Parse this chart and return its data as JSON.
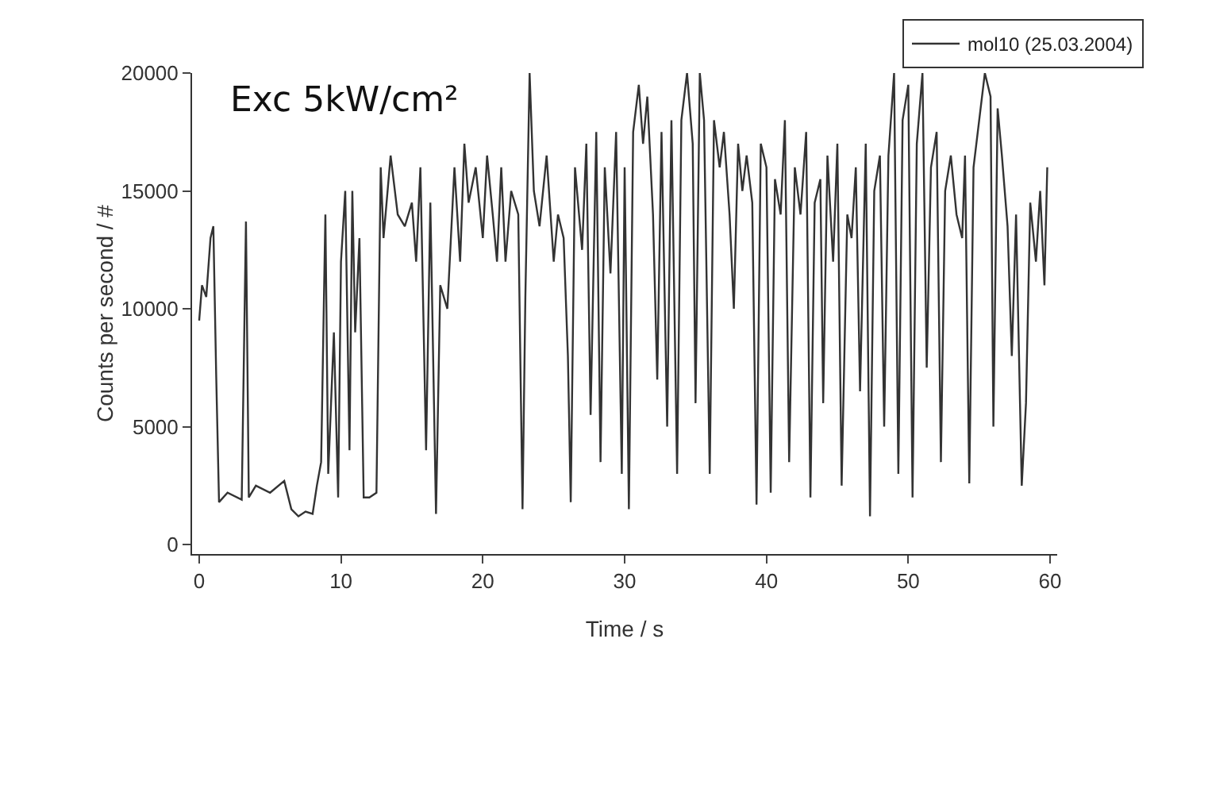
{
  "chart_data": {
    "type": "line",
    "xlabel": "Time / s",
    "ylabel": "Counts per second / #",
    "annotations": [
      "Exc 5kW/cm²"
    ],
    "xlim": [
      -0.5,
      60.5
    ],
    "xticks": [
      0,
      10,
      20,
      30,
      40,
      50,
      60
    ],
    "ylim": [
      -400,
      20000
    ],
    "yticks": [
      0,
      5000,
      10000,
      15000,
      20000
    ],
    "grid": false,
    "legend": "top right",
    "marker": "none",
    "line_style": "solid",
    "x": [
      0,
      0.2,
      0.5,
      0.8,
      1.0,
      1.2,
      1.4,
      2,
      3,
      3.3,
      3.5,
      4,
      5,
      6,
      6.5,
      7,
      7.5,
      8,
      8.3,
      8.6,
      8.9,
      9.1,
      9.5,
      9.8,
      10,
      10.3,
      10.6,
      10.8,
      11,
      11.3,
      11.6,
      12,
      12.5,
      12.8,
      13,
      13.5,
      14,
      14.5,
      15,
      15.3,
      15.6,
      16,
      16.3,
      16.7,
      17,
      17.5,
      18,
      18.4,
      18.7,
      19,
      19.5,
      20,
      20.3,
      20.7,
      21,
      21.3,
      21.6,
      22,
      22.5,
      22.8,
      23,
      23.3,
      23.6,
      24,
      24.5,
      25,
      25.3,
      25.7,
      26,
      26.2,
      26.5,
      27,
      27.3,
      27.6,
      28,
      28.3,
      28.6,
      29,
      29.4,
      29.8,
      30,
      30.3,
      30.6,
      31,
      31.3,
      31.6,
      32,
      32.3,
      32.6,
      33,
      33.3,
      33.7,
      34,
      34.4,
      34.8,
      35,
      35.3,
      35.6,
      36,
      36.3,
      36.7,
      37,
      37.4,
      37.7,
      38,
      38.3,
      38.6,
      39,
      39.3,
      39.6,
      40,
      40.3,
      40.6,
      41,
      41.3,
      41.6,
      42,
      42.4,
      42.8,
      43.1,
      43.4,
      43.8,
      44,
      44.3,
      44.7,
      45,
      45.3,
      45.7,
      46,
      46.3,
      46.6,
      47,
      47.3,
      47.6,
      48,
      48.3,
      48.6,
      49,
      49.3,
      49.6,
      50,
      50.3,
      50.6,
      51,
      51.3,
      51.6,
      52,
      52.3,
      52.6,
      53,
      53.4,
      53.8,
      54,
      54.3,
      54.6,
      55,
      55.4,
      55.8,
      56,
      56.3,
      56.6,
      57,
      57.3,
      57.6,
      58,
      58.3,
      58.6,
      59,
      59.3,
      59.6,
      59.8
    ],
    "series": [
      {
        "name": "mol10 (25.03.2004)",
        "color": "#333333",
        "values": [
          9500,
          11000,
          10500,
          13000,
          13500,
          7200,
          1800,
          2200,
          1900,
          13700,
          2000,
          2500,
          2200,
          2700,
          1500,
          1200,
          1400,
          1300,
          2500,
          3500,
          14000,
          3000,
          9000,
          2000,
          12000,
          15000,
          4000,
          15000,
          9000,
          13000,
          2000,
          2000,
          2200,
          16000,
          13000,
          16500,
          14000,
          13500,
          14500,
          12000,
          16000,
          4000,
          14500,
          1300,
          11000,
          10000,
          16000,
          12000,
          17000,
          14500,
          16000,
          13000,
          16500,
          14000,
          12000,
          16000,
          12000,
          15000,
          14000,
          1500,
          10500,
          20000,
          15000,
          13500,
          16500,
          12000,
          14000,
          13000,
          8000,
          1800,
          16000,
          12500,
          17000,
          5500,
          17500,
          3500,
          16000,
          11500,
          17500,
          3000,
          16000,
          1500,
          17500,
          19500,
          17000,
          19000,
          14000,
          7000,
          17500,
          5000,
          18000,
          3000,
          18000,
          20000,
          17000,
          6000,
          20000,
          18000,
          3000,
          18000,
          16000,
          17500,
          14000,
          10000,
          17000,
          15000,
          16500,
          14500,
          1700,
          17000,
          16000,
          2200,
          15500,
          14000,
          18000,
          3500,
          16000,
          14000,
          17500,
          2000,
          14500,
          15500,
          6000,
          16500,
          12000,
          17000,
          2500,
          14000,
          13000,
          16000,
          6500,
          17000,
          1200,
          15000,
          16500,
          5000,
          16500,
          20000,
          3000,
          18000,
          19500,
          2000,
          17000,
          20000,
          7500,
          16000,
          17500,
          3500,
          15000,
          16500,
          14000,
          13000,
          16500,
          2600,
          16000,
          18000,
          20000,
          19000,
          5000,
          18500,
          16500,
          13500,
          8000,
          14000,
          2500,
          6000,
          14500,
          12000,
          15000,
          11000,
          16000
        ]
      }
    ]
  }
}
